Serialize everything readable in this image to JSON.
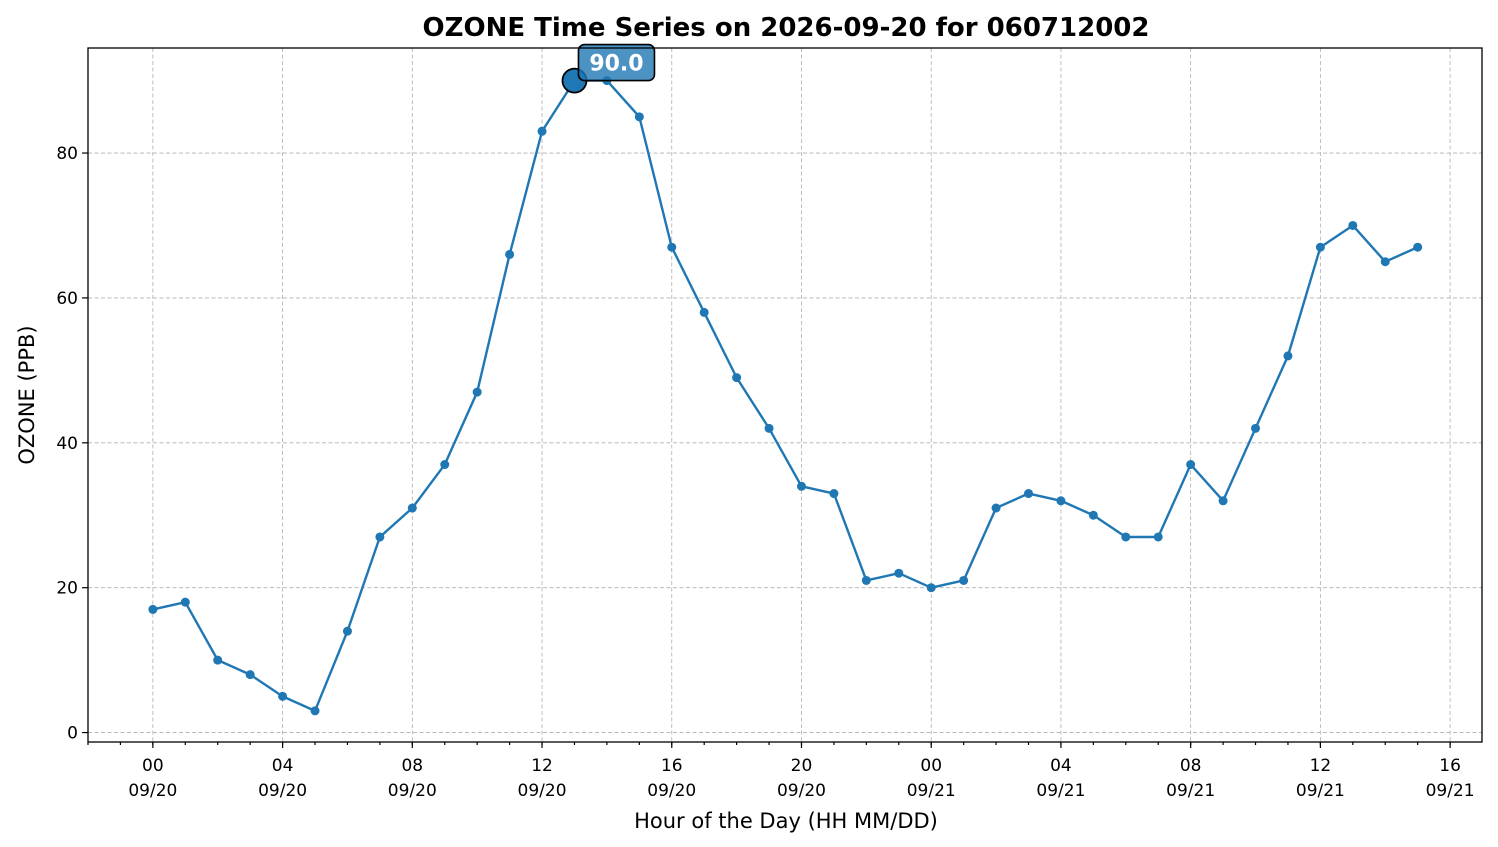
{
  "chart_data": {
    "type": "line",
    "title": "OZONE Time Series on 2026-09-20 for 060712002",
    "xlabel": "Hour of the Day (HH MM/DD)",
    "ylabel": "OZONE (PPB)",
    "x": [
      "2026-09-20 00:00",
      "2026-09-20 01:00",
      "2026-09-20 02:00",
      "2026-09-20 03:00",
      "2026-09-20 04:00",
      "2026-09-20 05:00",
      "2026-09-20 06:00",
      "2026-09-20 07:00",
      "2026-09-20 08:00",
      "2026-09-20 09:00",
      "2026-09-20 10:00",
      "2026-09-20 11:00",
      "2026-09-20 12:00",
      "2026-09-20 13:00",
      "2026-09-20 14:00",
      "2026-09-20 15:00",
      "2026-09-20 16:00",
      "2026-09-20 17:00",
      "2026-09-20 18:00",
      "2026-09-20 19:00",
      "2026-09-20 20:00",
      "2026-09-20 21:00",
      "2026-09-20 22:00",
      "2026-09-20 23:00",
      "2026-09-21 00:00",
      "2026-09-21 01:00",
      "2026-09-21 02:00",
      "2026-09-21 03:00",
      "2026-09-21 04:00",
      "2026-09-21 05:00",
      "2026-09-21 06:00",
      "2026-09-21 07:00",
      "2026-09-21 08:00",
      "2026-09-21 09:00",
      "2026-09-21 10:00",
      "2026-09-21 11:00",
      "2026-09-21 12:00",
      "2026-09-21 13:00",
      "2026-09-21 14:00",
      "2026-09-21 15:00"
    ],
    "series": [
      {
        "values": [
          17,
          18,
          10,
          8,
          5,
          3,
          14,
          27,
          31,
          37,
          47,
          66,
          83,
          90,
          90,
          85,
          67,
          58,
          49,
          42,
          34,
          33,
          21,
          22,
          20,
          21,
          31,
          33,
          32,
          30,
          27,
          27,
          37,
          32,
          42,
          52,
          67,
          70,
          65,
          67
        ],
        "color": "#1f77b4"
      }
    ],
    "highlight": {
      "x": "2026-09-20 13:00",
      "value": 90,
      "label": "90.0",
      "color": "#1f77b4"
    },
    "xlim": [
      "2026-09-19 22:00",
      "2026-09-21 16:59"
    ],
    "ylim": [
      -1.3,
      94.5
    ],
    "yticks": [
      0,
      20,
      40,
      60,
      80
    ],
    "xticks": [
      {
        "x": "2026-09-20 00:00",
        "hour": "00",
        "date": "09/20"
      },
      {
        "x": "2026-09-20 04:00",
        "hour": "04",
        "date": "09/20"
      },
      {
        "x": "2026-09-20 08:00",
        "hour": "08",
        "date": "09/20"
      },
      {
        "x": "2026-09-20 12:00",
        "hour": "12",
        "date": "09/20"
      },
      {
        "x": "2026-09-20 16:00",
        "hour": "16",
        "date": "09/20"
      },
      {
        "x": "2026-09-20 20:00",
        "hour": "20",
        "date": "09/20"
      },
      {
        "x": "2026-09-21 00:00",
        "hour": "00",
        "date": "09/21"
      },
      {
        "x": "2026-09-21 04:00",
        "hour": "04",
        "date": "09/21"
      },
      {
        "x": "2026-09-21 08:00",
        "hour": "08",
        "date": "09/21"
      },
      {
        "x": "2026-09-21 12:00",
        "hour": "12",
        "date": "09/21"
      },
      {
        "x": "2026-09-21 16:00",
        "hour": "16",
        "date": "09/21"
      }
    ],
    "grid": true,
    "legend": "none"
  }
}
